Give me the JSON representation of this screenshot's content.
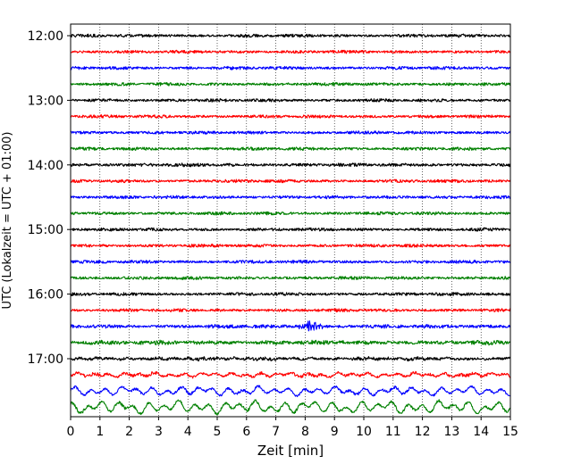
{
  "chart_data": {
    "type": "line",
    "title": "",
    "xlabel": "Zeit  [min]",
    "ylabel": "UTC (Lokalzeit = UTC + 01:00)",
    "xlim": [
      0,
      15
    ],
    "x_ticks": [
      0,
      1,
      2,
      3,
      4,
      5,
      6,
      7,
      8,
      9,
      10,
      11,
      12,
      13,
      14,
      15
    ],
    "x_tick_labels": [
      "0",
      "1",
      "2",
      "3",
      "4",
      "5",
      "6",
      "7",
      "8",
      "9",
      "10",
      "11",
      "12",
      "13",
      "14",
      "15"
    ],
    "y_tick_labels": [
      {
        "label": "12:00",
        "trace_index": 0
      },
      {
        "label": "13:00",
        "trace_index": 4
      },
      {
        "label": "14:00",
        "trace_index": 8
      },
      {
        "label": "15:00",
        "trace_index": 12
      },
      {
        "label": "16:00",
        "trace_index": 16
      },
      {
        "label": "17:00",
        "trace_index": 20
      }
    ],
    "grid": {
      "vertical": true,
      "style": "dotted"
    },
    "trace_colors": [
      "#000000",
      "#ff0000",
      "#0000ff",
      "#008000"
    ],
    "traces": [
      {
        "start_utc": "12:00",
        "color": "#000000",
        "noise_level": 1.0,
        "long_period_level": 0.0
      },
      {
        "start_utc": "12:15",
        "color": "#ff0000",
        "noise_level": 1.0,
        "long_period_level": 0.0
      },
      {
        "start_utc": "12:30",
        "color": "#0000ff",
        "noise_level": 1.0,
        "long_period_level": 0.0
      },
      {
        "start_utc": "12:45",
        "color": "#008000",
        "noise_level": 1.0,
        "long_period_level": 0.0
      },
      {
        "start_utc": "13:00",
        "color": "#000000",
        "noise_level": 1.0,
        "long_period_level": 0.0
      },
      {
        "start_utc": "13:15",
        "color": "#ff0000",
        "noise_level": 1.0,
        "long_period_level": 0.0
      },
      {
        "start_utc": "13:30",
        "color": "#0000ff",
        "noise_level": 1.0,
        "long_period_level": 0.0
      },
      {
        "start_utc": "13:45",
        "color": "#008000",
        "noise_level": 1.0,
        "long_period_level": 0.0
      },
      {
        "start_utc": "14:00",
        "color": "#000000",
        "noise_level": 1.1,
        "long_period_level": 0.0
      },
      {
        "start_utc": "14:15",
        "color": "#ff0000",
        "noise_level": 1.0,
        "long_period_level": 0.0
      },
      {
        "start_utc": "14:30",
        "color": "#0000ff",
        "noise_level": 1.0,
        "long_period_level": 0.0
      },
      {
        "start_utc": "14:45",
        "color": "#008000",
        "noise_level": 1.0,
        "long_period_level": 0.0
      },
      {
        "start_utc": "15:00",
        "color": "#000000",
        "noise_level": 1.0,
        "long_period_level": 0.0
      },
      {
        "start_utc": "15:15",
        "color": "#ff0000",
        "noise_level": 1.0,
        "long_period_level": 0.0
      },
      {
        "start_utc": "15:30",
        "color": "#0000ff",
        "noise_level": 1.0,
        "long_period_level": 0.0
      },
      {
        "start_utc": "15:45",
        "color": "#008000",
        "noise_level": 1.0,
        "long_period_level": 0.0
      },
      {
        "start_utc": "16:00",
        "color": "#000000",
        "noise_level": 1.0,
        "long_period_level": 0.0
      },
      {
        "start_utc": "16:15",
        "color": "#ff0000",
        "noise_level": 1.0,
        "long_period_level": 0.0
      },
      {
        "start_utc": "16:30",
        "color": "#0000ff",
        "noise_level": 1.2,
        "long_period_level": 0.0,
        "burst_min": 8.2,
        "burst_level": 2.6
      },
      {
        "start_utc": "16:45",
        "color": "#008000",
        "noise_level": 1.3,
        "long_period_level": 0.2
      },
      {
        "start_utc": "17:00",
        "color": "#000000",
        "noise_level": 1.1,
        "long_period_level": 0.3
      },
      {
        "start_utc": "17:15",
        "color": "#ff0000",
        "noise_level": 1.0,
        "long_period_level": 0.8
      },
      {
        "start_utc": "17:30",
        "color": "#0000ff",
        "noise_level": 0.9,
        "long_period_level": 1.6
      },
      {
        "start_utc": "17:45",
        "color": "#008000",
        "noise_level": 0.9,
        "long_period_level": 2.3
      }
    ]
  }
}
